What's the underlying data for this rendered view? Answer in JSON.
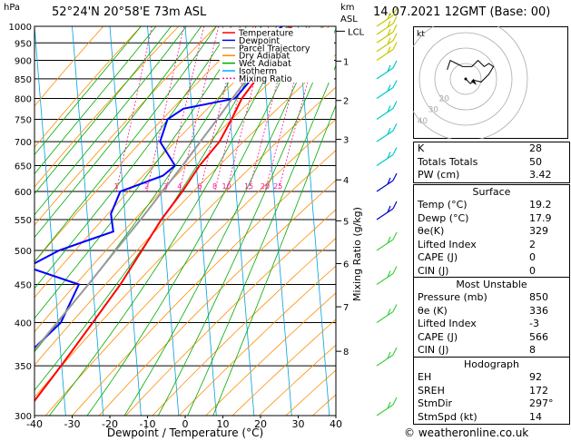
{
  "header": {
    "hpa_label": "hPa",
    "location": "52°24'N  20°58'E  73m  ASL",
    "km_label": "km",
    "asl_label": "ASL",
    "datetime": "14.07.2021  12GMT  (Base: 00)"
  },
  "chart_data": {
    "type": "line",
    "title": "Skew-T log-P diagram",
    "xlabel": "Dewpoint / Temperature (°C)",
    "ylabel": "hPa",
    "right_label": "Mixing Ratio (g/kg)",
    "x_ticks": [
      -40,
      -30,
      -20,
      -10,
      0,
      10,
      20,
      30,
      40
    ],
    "pressure_levels": [
      300,
      350,
      400,
      450,
      500,
      550,
      600,
      650,
      700,
      750,
      800,
      850,
      900,
      950,
      1000
    ],
    "ylim": [
      1000,
      300
    ],
    "xlim": [
      -40,
      40
    ],
    "km_ticks": [
      {
        "km": "1",
        "p": 898
      },
      {
        "km": "2",
        "p": 795
      },
      {
        "km": "3",
        "p": 705
      },
      {
        "km": "4",
        "p": 622
      },
      {
        "km": "5",
        "p": 548
      },
      {
        "km": "6",
        "p": 480
      },
      {
        "km": "7",
        "p": 420
      },
      {
        "km": "8",
        "p": 366
      }
    ],
    "lcl": {
      "label": "LCL",
      "p": 985
    },
    "mixing_ratio_labels": [
      "1",
      "2",
      "3",
      "4",
      "6",
      "8",
      "10",
      "15",
      "20",
      "25"
    ],
    "mixing_ratio_values": [
      1,
      2,
      3,
      4,
      6,
      8,
      10,
      15,
      20,
      25
    ],
    "legend": [
      {
        "name": "Temperature",
        "color": "#ff0000"
      },
      {
        "name": "Dewpoint",
        "color": "#0000ff"
      },
      {
        "name": "Parcel Trajectory",
        "color": "#999999"
      },
      {
        "name": "Dry Adiabat",
        "color": "#ff8c00"
      },
      {
        "name": "Wet Adiabat",
        "color": "#00aa00"
      },
      {
        "name": "Isotherm",
        "color": "#00aaff"
      },
      {
        "name": "Mixing Ratio",
        "color": "#ff1493"
      }
    ],
    "series": [
      {
        "name": "Temperature",
        "color": "#ff0000",
        "points": [
          [
            1000,
            19
          ],
          [
            975,
            21.5
          ],
          [
            950,
            19.5
          ],
          [
            925,
            17.3
          ],
          [
            900,
            15.3
          ],
          [
            850,
            11.8
          ],
          [
            800,
            8.3
          ],
          [
            750,
            6
          ],
          [
            700,
            3.3
          ],
          [
            650,
            -1.5
          ],
          [
            600,
            -5.5
          ],
          [
            550,
            -10.5
          ],
          [
            500,
            -15
          ],
          [
            450,
            -20
          ],
          [
            400,
            -26.5
          ],
          [
            350,
            -34
          ],
          [
            300,
            -43
          ]
        ]
      },
      {
        "name": "Dewpoint",
        "color": "#0000ff",
        "points": [
          [
            1000,
            17.5
          ],
          [
            975,
            15
          ],
          [
            950,
            14.5
          ],
          [
            925,
            14
          ],
          [
            900,
            13.6
          ],
          [
            850,
            10.5
          ],
          [
            800,
            6.5
          ],
          [
            775,
            -7
          ],
          [
            750,
            -11
          ],
          [
            700,
            -12.5
          ],
          [
            650,
            -8
          ],
          [
            630,
            -11
          ],
          [
            600,
            -22
          ],
          [
            560,
            -24
          ],
          [
            530,
            -23
          ],
          [
            515,
            -30
          ],
          [
            500,
            -37
          ],
          [
            475,
            -45
          ],
          [
            450,
            -31
          ],
          [
            400,
            -35
          ],
          [
            350,
            -46
          ],
          [
            330,
            -52
          ],
          [
            300,
            -55
          ]
        ]
      },
      {
        "name": "Parcel Trajectory",
        "color": "#999999",
        "points": [
          [
            1000,
            19
          ],
          [
            985,
            17.9
          ],
          [
            950,
            15.5
          ],
          [
            900,
            12.5
          ],
          [
            850,
            9.3
          ],
          [
            800,
            5.8
          ],
          [
            750,
            2.2
          ],
          [
            700,
            -1.8
          ],
          [
            650,
            -6
          ],
          [
            600,
            -10.8
          ],
          [
            550,
            -16
          ],
          [
            500,
            -22
          ],
          [
            450,
            -28.5
          ],
          [
            400,
            -36
          ],
          [
            350,
            -44.5
          ],
          [
            300,
            -54
          ]
        ]
      }
    ],
    "hodograph": {
      "label": "kt",
      "ring_labels": [
        "10",
        "20",
        "30",
        "40"
      ],
      "trace": [
        [
          0,
          0
        ],
        [
          3,
          -3
        ],
        [
          6,
          -1
        ],
        [
          10,
          -2
        ],
        [
          15,
          3
        ],
        [
          18,
          8
        ],
        [
          15,
          10
        ],
        [
          12,
          8
        ],
        [
          8,
          12
        ],
        [
          4,
          8
        ],
        [
          -2,
          8
        ],
        [
          -6,
          10
        ],
        [
          -10,
          12
        ],
        [
          -12,
          6
        ]
      ],
      "storm_motion": [
        -7,
        4
      ]
    },
    "wind_barbs_pressures": [
      1000,
      975,
      950,
      925,
      900,
      850,
      800,
      750,
      700,
      650,
      600,
      550,
      500,
      450,
      400,
      350,
      300
    ]
  },
  "indices": {
    "rows": [
      {
        "label": "K",
        "value": "28"
      },
      {
        "label": "Totals Totals",
        "value": "50"
      },
      {
        "label": "PW (cm)",
        "value": "3.42"
      }
    ]
  },
  "surface": {
    "title": "Surface",
    "rows": [
      {
        "label": "Temp (°C)",
        "value": "19.2"
      },
      {
        "label": "Dewp (°C)",
        "value": "17.9"
      },
      {
        "label": "θe(K)",
        "value": "329"
      },
      {
        "label": "Lifted Index",
        "value": "2"
      },
      {
        "label": "CAPE (J)",
        "value": "0"
      },
      {
        "label": "CIN (J)",
        "value": "0"
      }
    ]
  },
  "most_unstable": {
    "title": "Most Unstable",
    "rows": [
      {
        "label": "Pressure (mb)",
        "value": "850"
      },
      {
        "label": "θe (K)",
        "value": "336"
      },
      {
        "label": "Lifted Index",
        "value": "-3"
      },
      {
        "label": "CAPE (J)",
        "value": "566"
      },
      {
        "label": "CIN (J)",
        "value": "8"
      }
    ]
  },
  "hodograph_table": {
    "title": "Hodograph",
    "rows": [
      {
        "label": "EH",
        "value": "92"
      },
      {
        "label": "SREH",
        "value": "172"
      },
      {
        "label": "StmDir",
        "value": "297°"
      },
      {
        "label": "StmSpd (kt)",
        "value": "14"
      }
    ]
  },
  "footer": {
    "copyright": "© weatheronline.co.uk"
  }
}
